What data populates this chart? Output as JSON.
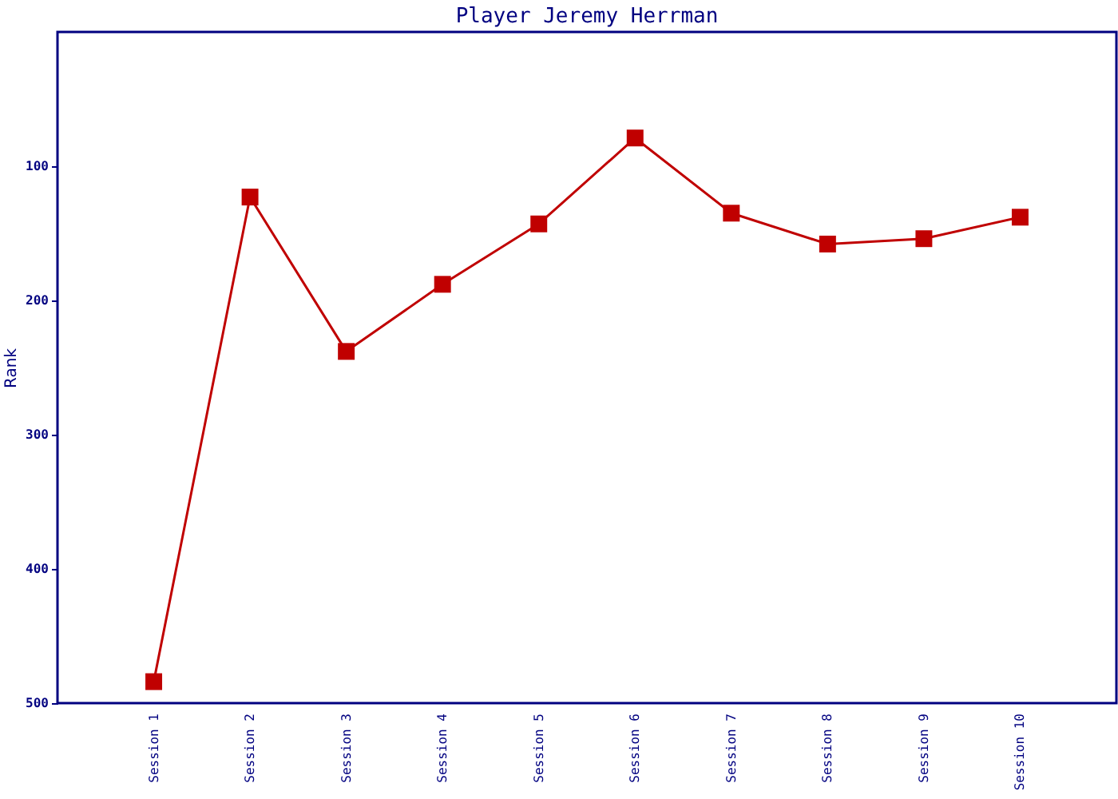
{
  "chart_data": {
    "type": "line",
    "title": "Player Jeremy Herrman",
    "ylabel": "Rank",
    "categories": [
      "Session 1",
      "Session 2",
      "Session 3",
      "Session 4",
      "Session 5",
      "Session 6",
      "Session 7",
      "Session 8",
      "Session 9",
      "Session 10"
    ],
    "series": [
      {
        "color": "#c00000",
        "values": [
          484,
          123,
          238,
          188,
          143,
          79,
          135,
          158,
          154,
          138
        ]
      }
    ],
    "ylim": [
      500,
      0
    ],
    "yticks": [
      100,
      200,
      300,
      400,
      500
    ],
    "grid": false,
    "marker": "square",
    "line_style": "solid"
  }
}
